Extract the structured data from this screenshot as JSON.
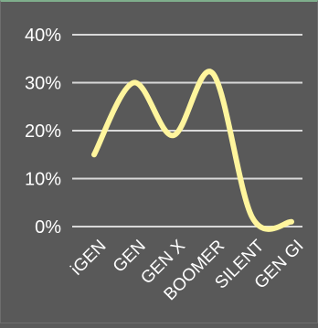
{
  "chart_data": {
    "type": "line",
    "title": "",
    "xlabel": "",
    "ylabel": "",
    "categories": [
      "iGEN",
      "GEN",
      "GEN X",
      "BOOMER",
      "SILENT",
      "GEN GI"
    ],
    "series": [
      {
        "values": [
          15,
          30,
          19,
          32,
          2,
          1
        ]
      }
    ],
    "ylim": [
      0,
      40
    ],
    "yticks": [
      "0%",
      "10%",
      "20%",
      "30%",
      "40%"
    ],
    "grid": true,
    "legend": "none",
    "colors": {
      "background": "#595959",
      "line": "#fff59d",
      "gridline": "#d9d9d9",
      "text": "#ffffff"
    }
  }
}
